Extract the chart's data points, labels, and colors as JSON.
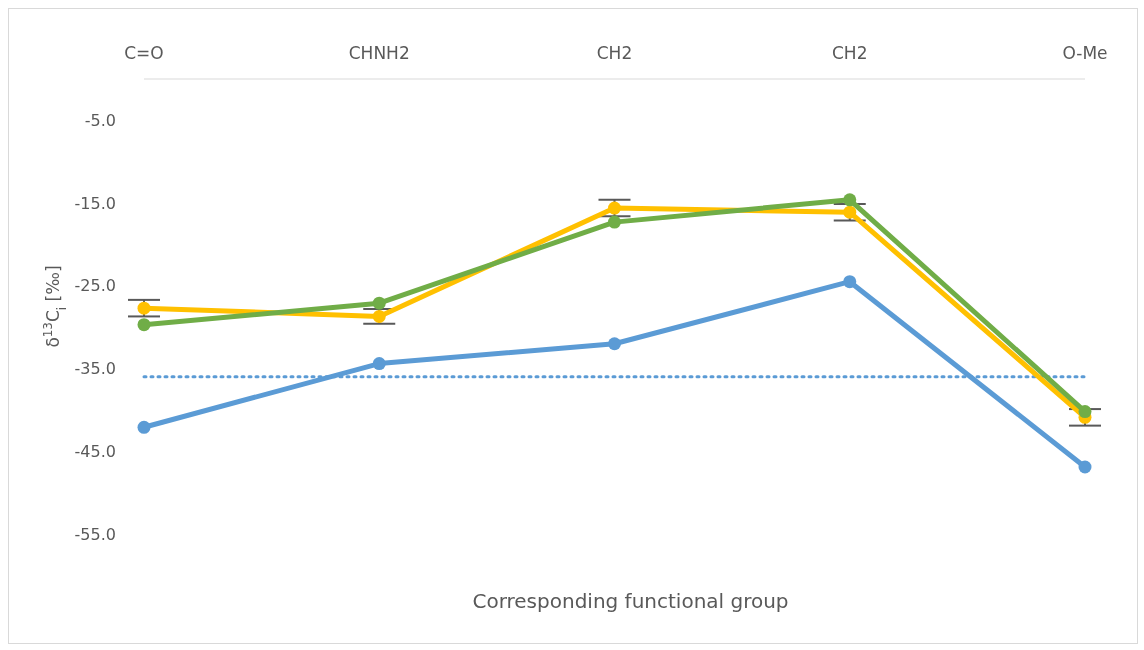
{
  "chart_data": {
    "type": "line",
    "xlabel": "Corresponding functional group",
    "ylabel": "δ$^{13}$C$_{i}$ [‰]",
    "categories": [
      "C=O",
      "CHNH2",
      "CH2",
      "CH2",
      "O-Me"
    ],
    "series": [
      {
        "color": "#5b9bd5",
        "values": [
          -42.1,
          -34.4,
          -32.0,
          -24.5,
          -46.9
        ]
      },
      {
        "color": "#ffc000",
        "values": [
          -27.7,
          -28.7,
          -15.6,
          -16.1,
          -40.9
        ],
        "errors": [
          1.0,
          0.9,
          1.0,
          1.0,
          1.0
        ]
      },
      {
        "color": "#70ad47",
        "values": [
          -29.7,
          -27.1,
          -17.3,
          -14.6,
          -40.2
        ]
      }
    ],
    "ylim": [
      -55,
      0
    ],
    "yticks": [
      {
        "value": -5,
        "label": "-5.0"
      },
      {
        "value": -15,
        "label": "-15.0"
      },
      {
        "value": -25,
        "label": "-25.0"
      },
      {
        "value": -35,
        "label": "-35.0"
      },
      {
        "value": -45,
        "label": "-45.0"
      },
      {
        "value": -55,
        "label": "-55.0"
      }
    ],
    "ref_lines": [
      {
        "axis": "y",
        "value": -36.0,
        "color": "#5b9bd5",
        "line_style": "dotted"
      }
    ],
    "grid": false,
    "legend": false,
    "marker": "circle",
    "line_style": "solid"
  }
}
